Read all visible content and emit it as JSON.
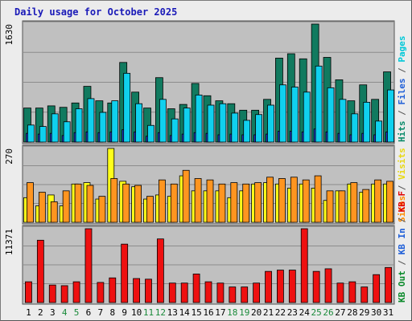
{
  "chart_data": {
    "type": "bar",
    "title": "Daily usage for October 2025",
    "categories": [
      "1",
      "2",
      "3",
      "4",
      "5",
      "6",
      "7",
      "8",
      "9",
      "10",
      "11",
      "12",
      "13",
      "14",
      "15",
      "16",
      "17",
      "18",
      "19",
      "20",
      "21",
      "22",
      "23",
      "24",
      "25",
      "26",
      "27",
      "28",
      "29",
      "30",
      "31"
    ],
    "weekend_days": [
      "4",
      "5",
      "11",
      "12",
      "18",
      "19",
      "25",
      "26"
    ],
    "panels": [
      {
        "id": "top",
        "ymax": 1630,
        "ymax_label": "1630",
        "right_labels": [
          {
            "text": "Pages",
            "color": "#00c8d8"
          },
          {
            "text": " / ",
            "color": "#555555"
          },
          {
            "text": "Files",
            "color": "#1f5fd8"
          },
          {
            "text": " / ",
            "color": "#555555"
          },
          {
            "text": "Hits",
            "color": "#0a8a6a"
          }
        ],
        "series": [
          {
            "name": "Hits",
            "color": "#117a5f",
            "values": [
              470,
              470,
              500,
              480,
              540,
              770,
              570,
              540,
              1100,
              690,
              470,
              890,
              460,
              520,
              810,
              640,
              570,
              530,
              440,
              440,
              590,
              1160,
              1220,
              1150,
              1630,
              1170,
              860,
              570,
              790,
              590,
              970
            ]
          },
          {
            "name": "Files",
            "color": "#1f3fd6",
            "values": [
              120,
              110,
              120,
              90,
              130,
              140,
              130,
              140,
              170,
              140,
              80,
              130,
              90,
              110,
              130,
              120,
              100,
              110,
              100,
              100,
              110,
              150,
              150,
              140,
              180,
              140,
              120,
              100,
              120,
              100,
              140
            ]
          },
          {
            "name": "Pages",
            "color": "#10d0ee",
            "values": [
              235,
              215,
              390,
              280,
              460,
              600,
              410,
              570,
              950,
              530,
              230,
              590,
              320,
              470,
              650,
              510,
              530,
              400,
              300,
              380,
              510,
              790,
              760,
              690,
              1050,
              750,
              590,
              390,
              550,
              290,
              720
            ]
          }
        ]
      },
      {
        "id": "middle",
        "ymax": 270,
        "ymax_label": "270",
        "right_labels": [
          {
            "text": "Visits",
            "color": "#e8d810"
          },
          {
            "text": " / ",
            "color": "#555555"
          },
          {
            "text": "Sites",
            "color": "#ff8c00"
          }
        ],
        "series": [
          {
            "name": "Visits",
            "color": "#ffff1a",
            "values": [
              90,
              60,
              100,
              60,
              140,
              145,
              85,
              270,
              150,
              130,
              85,
              100,
              95,
              170,
              115,
              115,
              115,
              90,
              115,
              140,
              145,
              140,
              125,
              140,
              125,
              80,
              115,
              140,
              110,
              140,
              140
            ]
          },
          {
            "name": "Sites",
            "color": "#ff9520",
            "values": [
              145,
              110,
              75,
              115,
              140,
              135,
              95,
              160,
              140,
              135,
              95,
              155,
              140,
              190,
              160,
              155,
              140,
              145,
              140,
              145,
              165,
              160,
              165,
              155,
              170,
              115,
              115,
              145,
              120,
              155,
              150
            ]
          }
        ]
      },
      {
        "id": "bottom",
        "ymax": 11371,
        "ymax_label": "11371",
        "right_labels": [
          {
            "text": "KB F",
            "color": "#e00000"
          },
          {
            "text": " / ",
            "color": "#555555"
          },
          {
            "text": "KB In",
            "color": "#1f5fd8"
          },
          {
            "text": " / ",
            "color": "#555555"
          },
          {
            "text": "KB Out",
            "color": "#0a8a2a"
          }
        ],
        "series": [
          {
            "name": "KB F",
            "color": "#ee1010",
            "values": [
              3200,
              9600,
              2700,
              2600,
              3200,
              11371,
              3100,
              3800,
              9000,
              3700,
              3600,
              9800,
              3000,
              3000,
              4400,
              3200,
              3000,
              2400,
              2400,
              3000,
              4800,
              5000,
              5000,
              11371,
              4800,
              5200,
              3000,
              3200,
              2400,
              4300,
              5400
            ]
          }
        ]
      }
    ]
  }
}
